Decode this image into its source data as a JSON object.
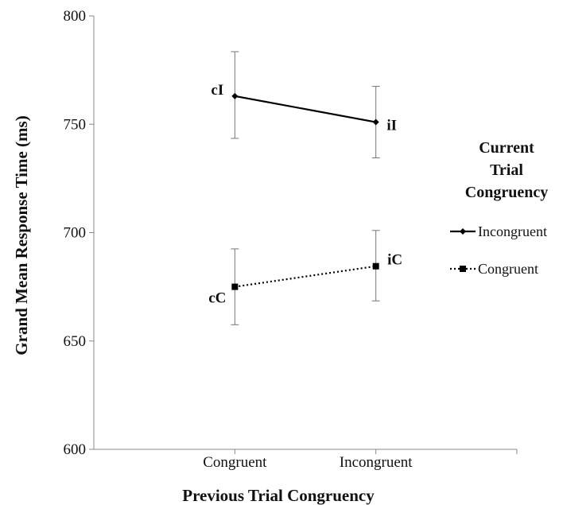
{
  "chart_data": {
    "type": "line",
    "title": "",
    "xlabel": "Previous Trial Congruency",
    "ylabel": "Grand Mean Response Time (ms)",
    "categories": [
      "Congruent",
      "Incongruent"
    ],
    "ylim": [
      600,
      800
    ],
    "yticks": [
      "600",
      "650",
      "700",
      "750",
      "800"
    ],
    "grid": false,
    "legend": {
      "title": [
        "Current",
        "Trial",
        "Congruency"
      ],
      "position": "right"
    },
    "series": [
      {
        "name": "Incongruent",
        "values": [
          763,
          751
        ],
        "error": [
          [
            743.5,
            783.5
          ],
          [
            734.5,
            767.5
          ]
        ],
        "point_labels": [
          "cI",
          "iI"
        ],
        "line_style": "solid",
        "marker": "diamond",
        "color": "#000000"
      },
      {
        "name": "Congruent",
        "values": [
          675,
          684.5
        ],
        "error": [
          [
            657.5,
            692.5
          ],
          [
            668.5,
            701
          ]
        ],
        "point_labels": [
          "cC",
          "iC"
        ],
        "line_style": "dotted",
        "marker": "square",
        "color": "#000000"
      }
    ]
  }
}
